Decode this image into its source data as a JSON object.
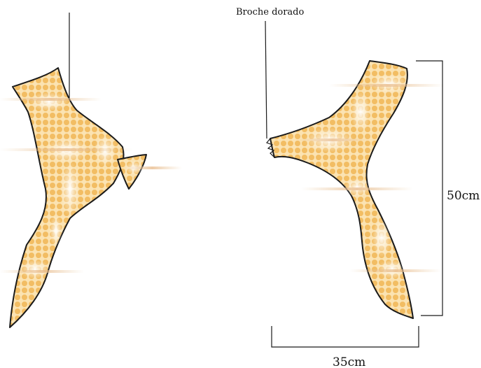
{
  "labels": {
    "brooch": "Broche dorado",
    "height": "50cm",
    "width": "35cm"
  },
  "colors": {
    "fill_base": "#fbe3b2",
    "dot": "#f2bd63",
    "outline": "#1a1a1a",
    "shine": "#ffffff",
    "flare": "#e8c9a0"
  }
}
